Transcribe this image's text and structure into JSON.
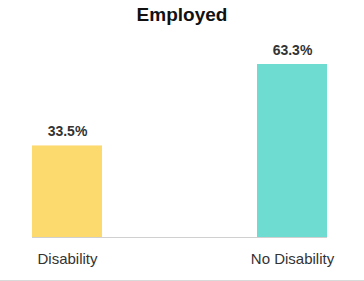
{
  "chart_data": {
    "type": "bar",
    "title": "Employed",
    "categories": [
      "Disability",
      "No Disability"
    ],
    "values": [
      33.5,
      63.3
    ],
    "value_labels": [
      "33.5%",
      "63.3%"
    ],
    "colors": [
      "#fdda6e",
      "#6edcd0"
    ],
    "ylim": [
      0,
      63.3
    ],
    "data_labels": true,
    "tick_labels": "x"
  }
}
